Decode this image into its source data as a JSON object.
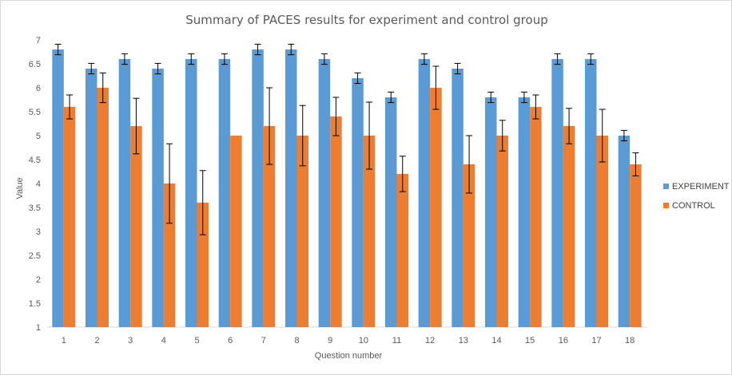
{
  "chart_data": {
    "type": "bar",
    "title": "Summary of PACES results for experiment and control group",
    "xlabel": "Question number",
    "ylabel": "Value",
    "ylim": [
      1,
      7
    ],
    "yticks": [
      "1",
      "1.5",
      "2",
      "2.5",
      "3",
      "3.5",
      "4",
      "4.5",
      "5",
      "5.5",
      "6",
      "6.5",
      "7"
    ],
    "categories": [
      "1",
      "2",
      "3",
      "4",
      "5",
      "6",
      "7",
      "8",
      "9",
      "10",
      "11",
      "12",
      "13",
      "14",
      "15",
      "16",
      "17",
      "18"
    ],
    "grid": false,
    "legend_position": "right",
    "series": [
      {
        "name": "EXPERIMENT",
        "color": "#5b9bd5",
        "values": [
          6.8,
          6.4,
          6.6,
          6.4,
          6.6,
          6.6,
          6.8,
          6.8,
          6.6,
          6.2,
          5.8,
          6.6,
          6.4,
          5.8,
          5.8,
          6.6,
          6.6,
          5.0
        ],
        "error": [
          0.11,
          0.11,
          0.11,
          0.11,
          0.11,
          0.11,
          0.11,
          0.11,
          0.11,
          0.11,
          0.11,
          0.11,
          0.11,
          0.11,
          0.11,
          0.11,
          0.11,
          0.11
        ]
      },
      {
        "name": "CONTROL",
        "color": "#ed7d31",
        "values": [
          5.6,
          6.0,
          5.2,
          4.0,
          3.6,
          5.0,
          5.2,
          5.0,
          5.4,
          5.0,
          4.2,
          6.0,
          4.4,
          5.0,
          5.6,
          5.2,
          5.0,
          4.4
        ],
        "error": [
          0.25,
          0.31,
          0.58,
          0.83,
          0.67,
          0.0,
          0.8,
          0.63,
          0.4,
          0.7,
          0.37,
          0.45,
          0.6,
          0.32,
          0.25,
          0.37,
          0.55,
          0.24
        ]
      }
    ]
  }
}
